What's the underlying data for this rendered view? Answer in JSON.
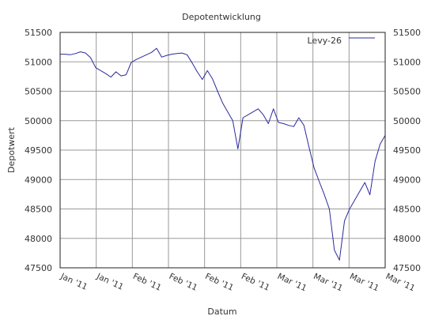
{
  "chart_data": {
    "type": "line",
    "title": "Depotentwicklung",
    "xlabel": "Datum",
    "ylabel": "Depotwert",
    "ylim": [
      47500,
      51500
    ],
    "yticks": [
      47500,
      48000,
      48500,
      49000,
      49500,
      50000,
      50500,
      51000,
      51500
    ],
    "xticks": [
      "Jan '11",
      "Jan '11",
      "Feb '11",
      "Feb '11",
      "Feb '11",
      "Feb '11",
      "Mar '11",
      "Mar '11",
      "Mar '11",
      "Mar '11"
    ],
    "grid": true,
    "legend": {
      "position": "top-right"
    },
    "line_color": "#2a2a9c",
    "series": [
      {
        "name": "Levy-26",
        "values": [
          51130,
          51130,
          51120,
          51140,
          51170,
          51150,
          51070,
          50900,
          50850,
          50800,
          50740,
          50830,
          50760,
          50780,
          50990,
          51040,
          51080,
          51120,
          51160,
          51230,
          51080,
          51110,
          51130,
          51140,
          51150,
          51120,
          50980,
          50830,
          50700,
          50850,
          50710,
          50500,
          50300,
          50150,
          50000,
          49520,
          50050,
          50100,
          50150,
          50200,
          50100,
          49950,
          50200,
          49970,
          49950,
          49920,
          49900,
          50050,
          49920,
          49550,
          49200,
          48970,
          48750,
          48500,
          47800,
          47630,
          48300,
          48500,
          48650,
          48800,
          48950,
          48740,
          49310,
          49600,
          49750
        ]
      }
    ]
  }
}
